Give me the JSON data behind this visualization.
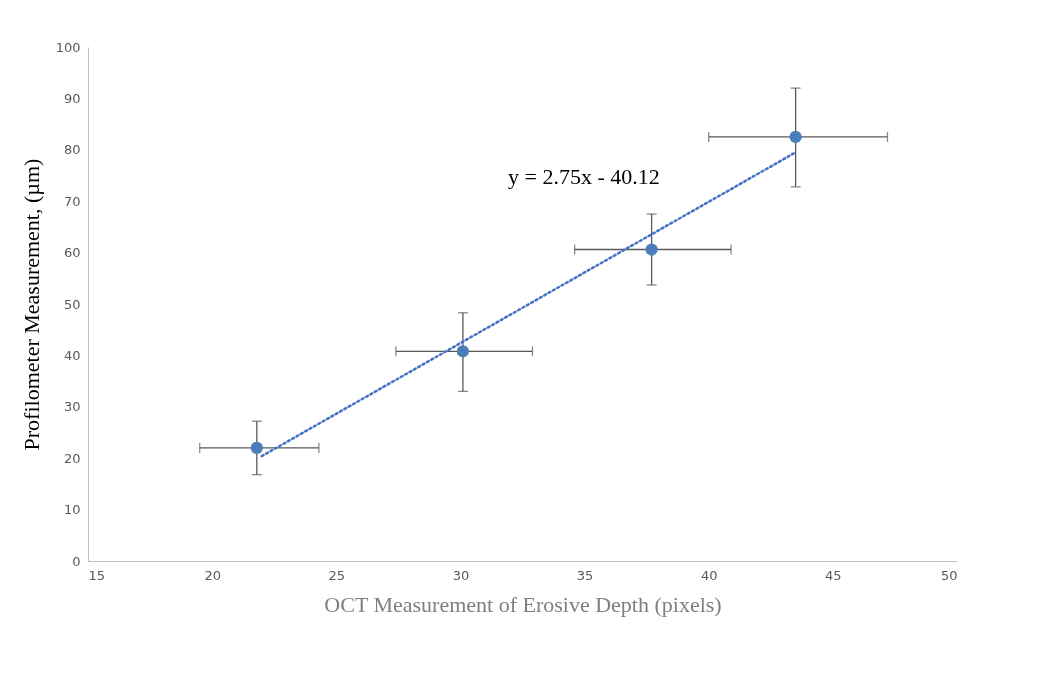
{
  "chart_data": {
    "type": "scatter",
    "xlabel": "OCT Measurement of Erosive Depth (pixels)",
    "ylabel": "Profilometer Measurement, (µm)",
    "xlim": [
      15,
      50
    ],
    "xticks": [
      15,
      20,
      25,
      30,
      35,
      40,
      45,
      50
    ],
    "ylim": [
      0,
      100
    ],
    "yticks": [
      0,
      10,
      20,
      30,
      40,
      50,
      60,
      70,
      80,
      90,
      100
    ],
    "marker": "circle",
    "annotations": [
      "y = 2.75x - 40.12"
    ],
    "series": [
      {
        "color": "#4a7ebb",
        "x": [
          21.8,
          30.1,
          37.7,
          43.5
        ],
        "values": [
          22.0,
          40.8,
          60.6,
          82.5
        ],
        "errors": [
          [
            16.8,
            27.2
          ],
          [
            33.0,
            48.3
          ],
          [
            53.7,
            67.5
          ],
          [
            72.8,
            92.0
          ]
        ],
        "xerrors": [
          [
            19.5,
            24.3
          ],
          [
            27.4,
            32.9
          ],
          [
            34.6,
            40.9
          ],
          [
            40.0,
            47.2
          ]
        ]
      },
      {
        "type": "line",
        "color": "#4472c4",
        "line_style": "dotted",
        "marker": "none",
        "x": [
          22.0,
          43.5
        ],
        "values": [
          20.4,
          79.5
        ]
      }
    ]
  }
}
